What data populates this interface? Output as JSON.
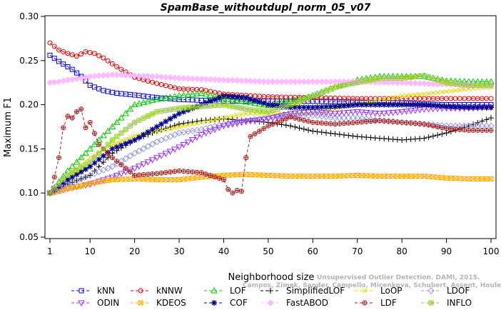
{
  "chart_data": {
    "type": "line",
    "title": "SpamBase_withoutdupl_norm_05_v07",
    "xlabel": "Neighborhood size",
    "ylabel": "Maximum F1",
    "xlim": [
      1,
      100
    ],
    "ylim": [
      0.05,
      0.3
    ],
    "x_ticks": [
      1,
      10,
      20,
      30,
      40,
      50,
      60,
      70,
      80,
      90,
      100
    ],
    "y_ticks": [
      "0.05",
      "0.10",
      "0.15",
      "0.20",
      "0.25",
      "0.30"
    ],
    "grid": false,
    "legend_position": "bottom",
    "watermark": [
      "Unsupervised Outlier Detection. DAMI, 2015.",
      "Campos, Zimek, Sander, Campello, Micenkova, Schubert, Assent, Houle"
    ],
    "series": [
      {
        "name": "kNN",
        "color": "#0000dd",
        "marker": "square",
        "points": [
          [
            1,
            0.256
          ],
          [
            3,
            0.249
          ],
          [
            6,
            0.24
          ],
          [
            8,
            0.232
          ],
          [
            10,
            0.222
          ],
          [
            13,
            0.216
          ],
          [
            16,
            0.213
          ],
          [
            20,
            0.211
          ],
          [
            25,
            0.208
          ],
          [
            30,
            0.206
          ],
          [
            35,
            0.205
          ],
          [
            40,
            0.204
          ],
          [
            50,
            0.204
          ],
          [
            60,
            0.204
          ],
          [
            70,
            0.203
          ],
          [
            80,
            0.202
          ],
          [
            90,
            0.2
          ],
          [
            100,
            0.2
          ]
        ]
      },
      {
        "name": "kNNW",
        "color": "#dd0000",
        "marker": "circle",
        "points": [
          [
            1,
            0.27
          ],
          [
            3,
            0.262
          ],
          [
            5,
            0.258
          ],
          [
            7,
            0.255
          ],
          [
            9,
            0.26
          ],
          [
            11,
            0.258
          ],
          [
            13,
            0.253
          ],
          [
            16,
            0.243
          ],
          [
            20,
            0.231
          ],
          [
            25,
            0.224
          ],
          [
            30,
            0.218
          ],
          [
            35,
            0.217
          ],
          [
            40,
            0.212
          ],
          [
            50,
            0.209
          ],
          [
            60,
            0.208
          ],
          [
            70,
            0.207
          ],
          [
            80,
            0.207
          ],
          [
            90,
            0.207
          ],
          [
            100,
            0.207
          ]
        ]
      },
      {
        "name": "LOF",
        "color": "#00cc00",
        "marker": "triangle",
        "points": [
          [
            1,
            0.1
          ],
          [
            5,
            0.125
          ],
          [
            10,
            0.15
          ],
          [
            15,
            0.175
          ],
          [
            20,
            0.2
          ],
          [
            25,
            0.206
          ],
          [
            30,
            0.21
          ],
          [
            35,
            0.213
          ],
          [
            40,
            0.207
          ],
          [
            45,
            0.203
          ],
          [
            50,
            0.199
          ],
          [
            55,
            0.204
          ],
          [
            60,
            0.21
          ],
          [
            65,
            0.22
          ],
          [
            70,
            0.228
          ],
          [
            75,
            0.232
          ],
          [
            80,
            0.232
          ],
          [
            85,
            0.232
          ],
          [
            90,
            0.227
          ],
          [
            95,
            0.226
          ],
          [
            100,
            0.226
          ]
        ]
      },
      {
        "name": "SimplifiedLOF",
        "color": "#000000",
        "marker": "plus",
        "points": [
          [
            1,
            0.1
          ],
          [
            5,
            0.11
          ],
          [
            10,
            0.12
          ],
          [
            15,
            0.145
          ],
          [
            20,
            0.16
          ],
          [
            25,
            0.17
          ],
          [
            30,
            0.178
          ],
          [
            35,
            0.182
          ],
          [
            40,
            0.184
          ],
          [
            45,
            0.182
          ],
          [
            50,
            0.18
          ],
          [
            55,
            0.176
          ],
          [
            60,
            0.17
          ],
          [
            65,
            0.167
          ],
          [
            70,
            0.164
          ],
          [
            75,
            0.162
          ],
          [
            80,
            0.16
          ],
          [
            85,
            0.162
          ],
          [
            90,
            0.168
          ],
          [
            95,
            0.176
          ],
          [
            100,
            0.185
          ]
        ]
      },
      {
        "name": "LoOP",
        "color": "#dddd00",
        "marker": "x",
        "points": [
          [
            1,
            0.1
          ],
          [
            5,
            0.12
          ],
          [
            10,
            0.14
          ],
          [
            15,
            0.155
          ],
          [
            20,
            0.165
          ],
          [
            25,
            0.17
          ],
          [
            30,
            0.175
          ],
          [
            35,
            0.18
          ],
          [
            40,
            0.185
          ],
          [
            45,
            0.19
          ],
          [
            50,
            0.19
          ],
          [
            55,
            0.19
          ],
          [
            60,
            0.19
          ],
          [
            65,
            0.195
          ],
          [
            70,
            0.2
          ],
          [
            75,
            0.205
          ],
          [
            80,
            0.21
          ],
          [
            85,
            0.212
          ],
          [
            90,
            0.215
          ],
          [
            95,
            0.218
          ],
          [
            100,
            0.22
          ]
        ]
      },
      {
        "name": "LDOF",
        "color": "#9999dd",
        "marker": "diamond",
        "points": [
          [
            1,
            0.1
          ],
          [
            5,
            0.11
          ],
          [
            10,
            0.12
          ],
          [
            15,
            0.13
          ],
          [
            20,
            0.145
          ],
          [
            25,
            0.158
          ],
          [
            30,
            0.168
          ],
          [
            35,
            0.172
          ],
          [
            40,
            0.178
          ],
          [
            45,
            0.182
          ],
          [
            50,
            0.185
          ],
          [
            55,
            0.187
          ],
          [
            60,
            0.188
          ],
          [
            65,
            0.185
          ],
          [
            70,
            0.185
          ],
          [
            75,
            0.182
          ],
          [
            80,
            0.18
          ],
          [
            85,
            0.178
          ],
          [
            90,
            0.176
          ],
          [
            95,
            0.176
          ],
          [
            100,
            0.176
          ]
        ]
      },
      {
        "name": "ODIN",
        "color": "#9933ff",
        "marker": "triangle-down",
        "points": [
          [
            1,
            0.1
          ],
          [
            5,
            0.105
          ],
          [
            10,
            0.11
          ],
          [
            15,
            0.118
          ],
          [
            20,
            0.128
          ],
          [
            25,
            0.14
          ],
          [
            30,
            0.152
          ],
          [
            35,
            0.166
          ],
          [
            40,
            0.176
          ],
          [
            45,
            0.181
          ],
          [
            50,
            0.184
          ],
          [
            55,
            0.19
          ],
          [
            60,
            0.192
          ],
          [
            65,
            0.19
          ],
          [
            70,
            0.192
          ],
          [
            75,
            0.19
          ],
          [
            80,
            0.192
          ],
          [
            85,
            0.195
          ],
          [
            90,
            0.196
          ],
          [
            95,
            0.196
          ],
          [
            100,
            0.197
          ]
        ]
      },
      {
        "name": "KDEOS",
        "color": "#ffaa00",
        "marker": "square-x",
        "points": [
          [
            1,
            0.1
          ],
          [
            3,
            0.102
          ],
          [
            5,
            0.105
          ],
          [
            8,
            0.108
          ],
          [
            10,
            0.111
          ],
          [
            15,
            0.115
          ],
          [
            20,
            0.116
          ],
          [
            25,
            0.115
          ],
          [
            30,
            0.115
          ],
          [
            35,
            0.118
          ],
          [
            40,
            0.12
          ],
          [
            45,
            0.121
          ],
          [
            50,
            0.12
          ],
          [
            55,
            0.119
          ],
          [
            60,
            0.119
          ],
          [
            65,
            0.119
          ],
          [
            70,
            0.12
          ],
          [
            75,
            0.119
          ],
          [
            80,
            0.119
          ],
          [
            85,
            0.119
          ],
          [
            90,
            0.117
          ],
          [
            95,
            0.116
          ],
          [
            100,
            0.116
          ]
        ]
      },
      {
        "name": "COF",
        "color": "#000088",
        "marker": "star",
        "points": [
          [
            1,
            0.1
          ],
          [
            5,
            0.115
          ],
          [
            10,
            0.13
          ],
          [
            15,
            0.15
          ],
          [
            20,
            0.16
          ],
          [
            25,
            0.175
          ],
          [
            30,
            0.19
          ],
          [
            35,
            0.2
          ],
          [
            40,
            0.21
          ],
          [
            45,
            0.208
          ],
          [
            50,
            0.2
          ],
          [
            55,
            0.197
          ],
          [
            60,
            0.197
          ],
          [
            65,
            0.198
          ],
          [
            70,
            0.2
          ],
          [
            75,
            0.2
          ],
          [
            80,
            0.2
          ],
          [
            85,
            0.2
          ],
          [
            90,
            0.198
          ],
          [
            95,
            0.197
          ],
          [
            100,
            0.197
          ]
        ]
      },
      {
        "name": "FastABOD",
        "color": "#ffbbff",
        "marker": "diamond-filled",
        "points": [
          [
            1,
            0.225
          ],
          [
            3,
            0.226
          ],
          [
            5,
            0.228
          ],
          [
            8,
            0.23
          ],
          [
            10,
            0.232
          ],
          [
            15,
            0.234
          ],
          [
            20,
            0.233
          ],
          [
            25,
            0.232
          ],
          [
            30,
            0.23
          ],
          [
            40,
            0.228
          ],
          [
            50,
            0.226
          ],
          [
            60,
            0.226
          ],
          [
            70,
            0.226
          ],
          [
            80,
            0.225
          ],
          [
            90,
            0.223
          ],
          [
            100,
            0.221
          ]
        ]
      },
      {
        "name": "LDF",
        "color": "#aa2222",
        "marker": "circle-plus",
        "points": [
          [
            1,
            0.1
          ],
          [
            2,
            0.118
          ],
          [
            3,
            0.14
          ],
          [
            4,
            0.174
          ],
          [
            5,
            0.187
          ],
          [
            6,
            0.185
          ],
          [
            7,
            0.192
          ],
          [
            8,
            0.195
          ],
          [
            9,
            0.174
          ],
          [
            10,
            0.18
          ],
          [
            12,
            0.155
          ],
          [
            15,
            0.14
          ],
          [
            20,
            0.12
          ],
          [
            25,
            0.122
          ],
          [
            30,
            0.125
          ],
          [
            35,
            0.123
          ],
          [
            40,
            0.115
          ],
          [
            41,
            0.104
          ],
          [
            42,
            0.1
          ],
          [
            43,
            0.103
          ],
          [
            44,
            0.102
          ],
          [
            45,
            0.14
          ],
          [
            46,
            0.164
          ],
          [
            50,
            0.176
          ],
          [
            55,
            0.186
          ],
          [
            60,
            0.18
          ],
          [
            65,
            0.178
          ],
          [
            70,
            0.18
          ],
          [
            75,
            0.182
          ],
          [
            80,
            0.18
          ],
          [
            85,
            0.178
          ],
          [
            90,
            0.173
          ],
          [
            95,
            0.171
          ],
          [
            100,
            0.171
          ]
        ]
      },
      {
        "name": "INFLO",
        "color": "#99cc33",
        "marker": "hash",
        "points": [
          [
            1,
            0.1
          ],
          [
            5,
            0.12
          ],
          [
            10,
            0.135
          ],
          [
            15,
            0.16
          ],
          [
            20,
            0.18
          ],
          [
            25,
            0.192
          ],
          [
            30,
            0.196
          ],
          [
            35,
            0.198
          ],
          [
            40,
            0.2
          ],
          [
            45,
            0.195
          ],
          [
            50,
            0.192
          ],
          [
            55,
            0.2
          ],
          [
            60,
            0.21
          ],
          [
            65,
            0.22
          ],
          [
            70,
            0.225
          ],
          [
            75,
            0.23
          ],
          [
            80,
            0.23
          ],
          [
            85,
            0.233
          ],
          [
            90,
            0.225
          ],
          [
            95,
            0.222
          ],
          [
            100,
            0.222
          ]
        ]
      }
    ]
  }
}
